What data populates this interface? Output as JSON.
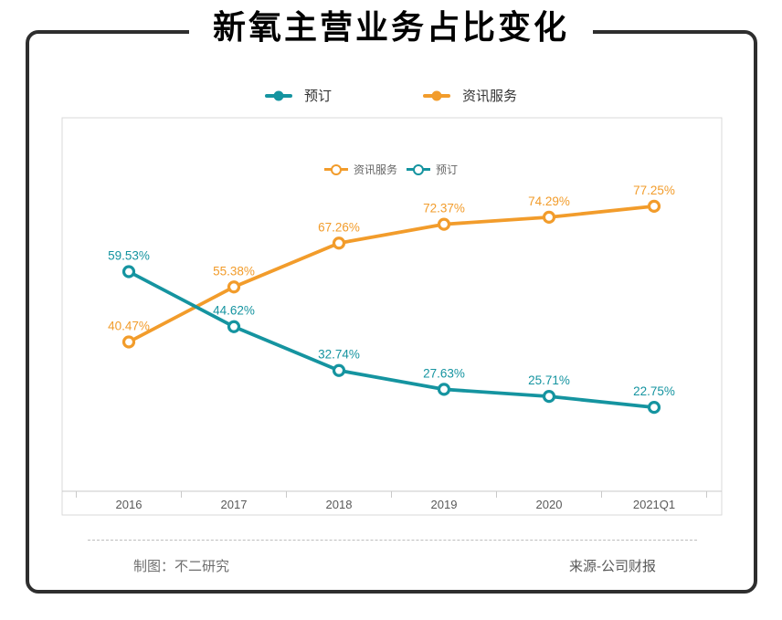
{
  "title": "新氧主营业务占比变化",
  "legend": {
    "items": [
      {
        "label": "预订",
        "color": "#1594A0"
      },
      {
        "label": "资讯服务",
        "color": "#F29C2B"
      }
    ]
  },
  "inner_legend": {
    "items": [
      {
        "label": "资讯服务",
        "color": "#F29C2B"
      },
      {
        "label": "预订",
        "color": "#1594A0"
      }
    ]
  },
  "chart_data": {
    "type": "line",
    "title": "新氧主营业务占比变化",
    "categories": [
      "2016",
      "2017",
      "2018",
      "2019",
      "2020",
      "2021Q1"
    ],
    "series": [
      {
        "name": "预订",
        "color": "#1594A0",
        "values": [
          59.53,
          44.62,
          32.74,
          27.63,
          25.71,
          22.75
        ]
      },
      {
        "name": "资讯服务",
        "color": "#F29C2B",
        "values": [
          40.47,
          55.38,
          67.26,
          72.37,
          74.29,
          77.25
        ]
      }
    ],
    "xlabel": "",
    "ylabel": "",
    "ylim": [
      0,
      100
    ],
    "value_label_format": "{v}%",
    "grid": false,
    "legend_position": "top",
    "axis_color": "#c9c9c9",
    "tick_label_color": "#5a5a5a",
    "plot_border_color": "#d9d9d9"
  },
  "footer": {
    "credit": "制图：不二研究",
    "source": "来源-公司财报"
  },
  "colors": {
    "frame_border": "#2e2e2e",
    "booking": "#1594A0",
    "info_service": "#F29C2B"
  }
}
